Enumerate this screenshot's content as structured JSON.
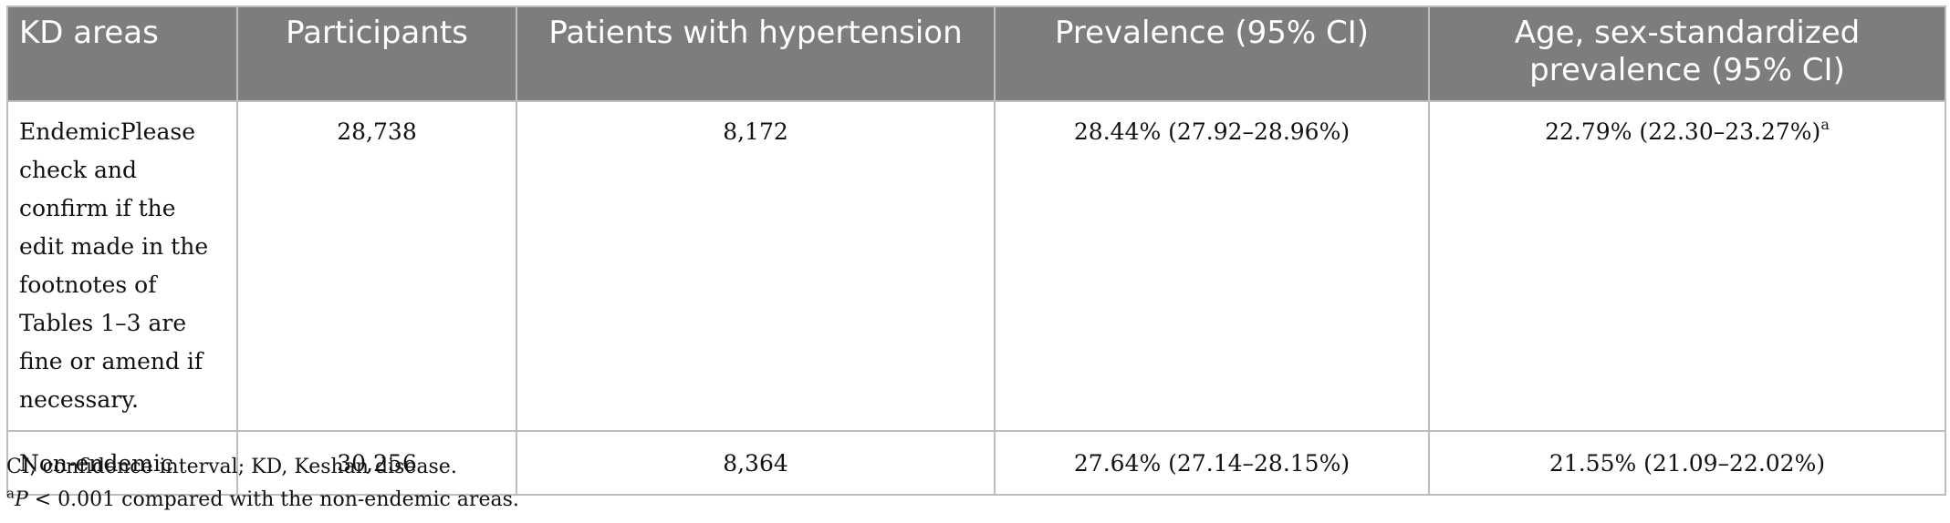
{
  "table": {
    "headers": [
      "KD areas",
      "Participants",
      "Patients with hypertension",
      "Prevalence (95% CI)",
      "Age, sex-standardized prevalence (95% CI)"
    ],
    "rows": [
      {
        "area": "EndemicPlease check and confirm if the edit made in the footnotes of Tables 1–3 are fine or amend if necessary.",
        "participants": "28,738",
        "patients": "8,172",
        "prevalence": "28.44% (27.92–28.96%)",
        "standardized": "22.79% (22.30–23.27%)",
        "standardized_sup": "a"
      },
      {
        "area": "Non-endemic",
        "participants": "30,256",
        "patients": "8,364",
        "prevalence": "27.64% (27.14–28.15%)",
        "standardized": "21.55% (21.09–22.02%)"
      }
    ]
  },
  "footnotes": {
    "abbrev": "CI, confidence interval; KD, Keshan disease.",
    "sig_marker": "a",
    "sig_p": "P",
    "sig_text": " < 0.001 compared with the non-endemic areas."
  }
}
